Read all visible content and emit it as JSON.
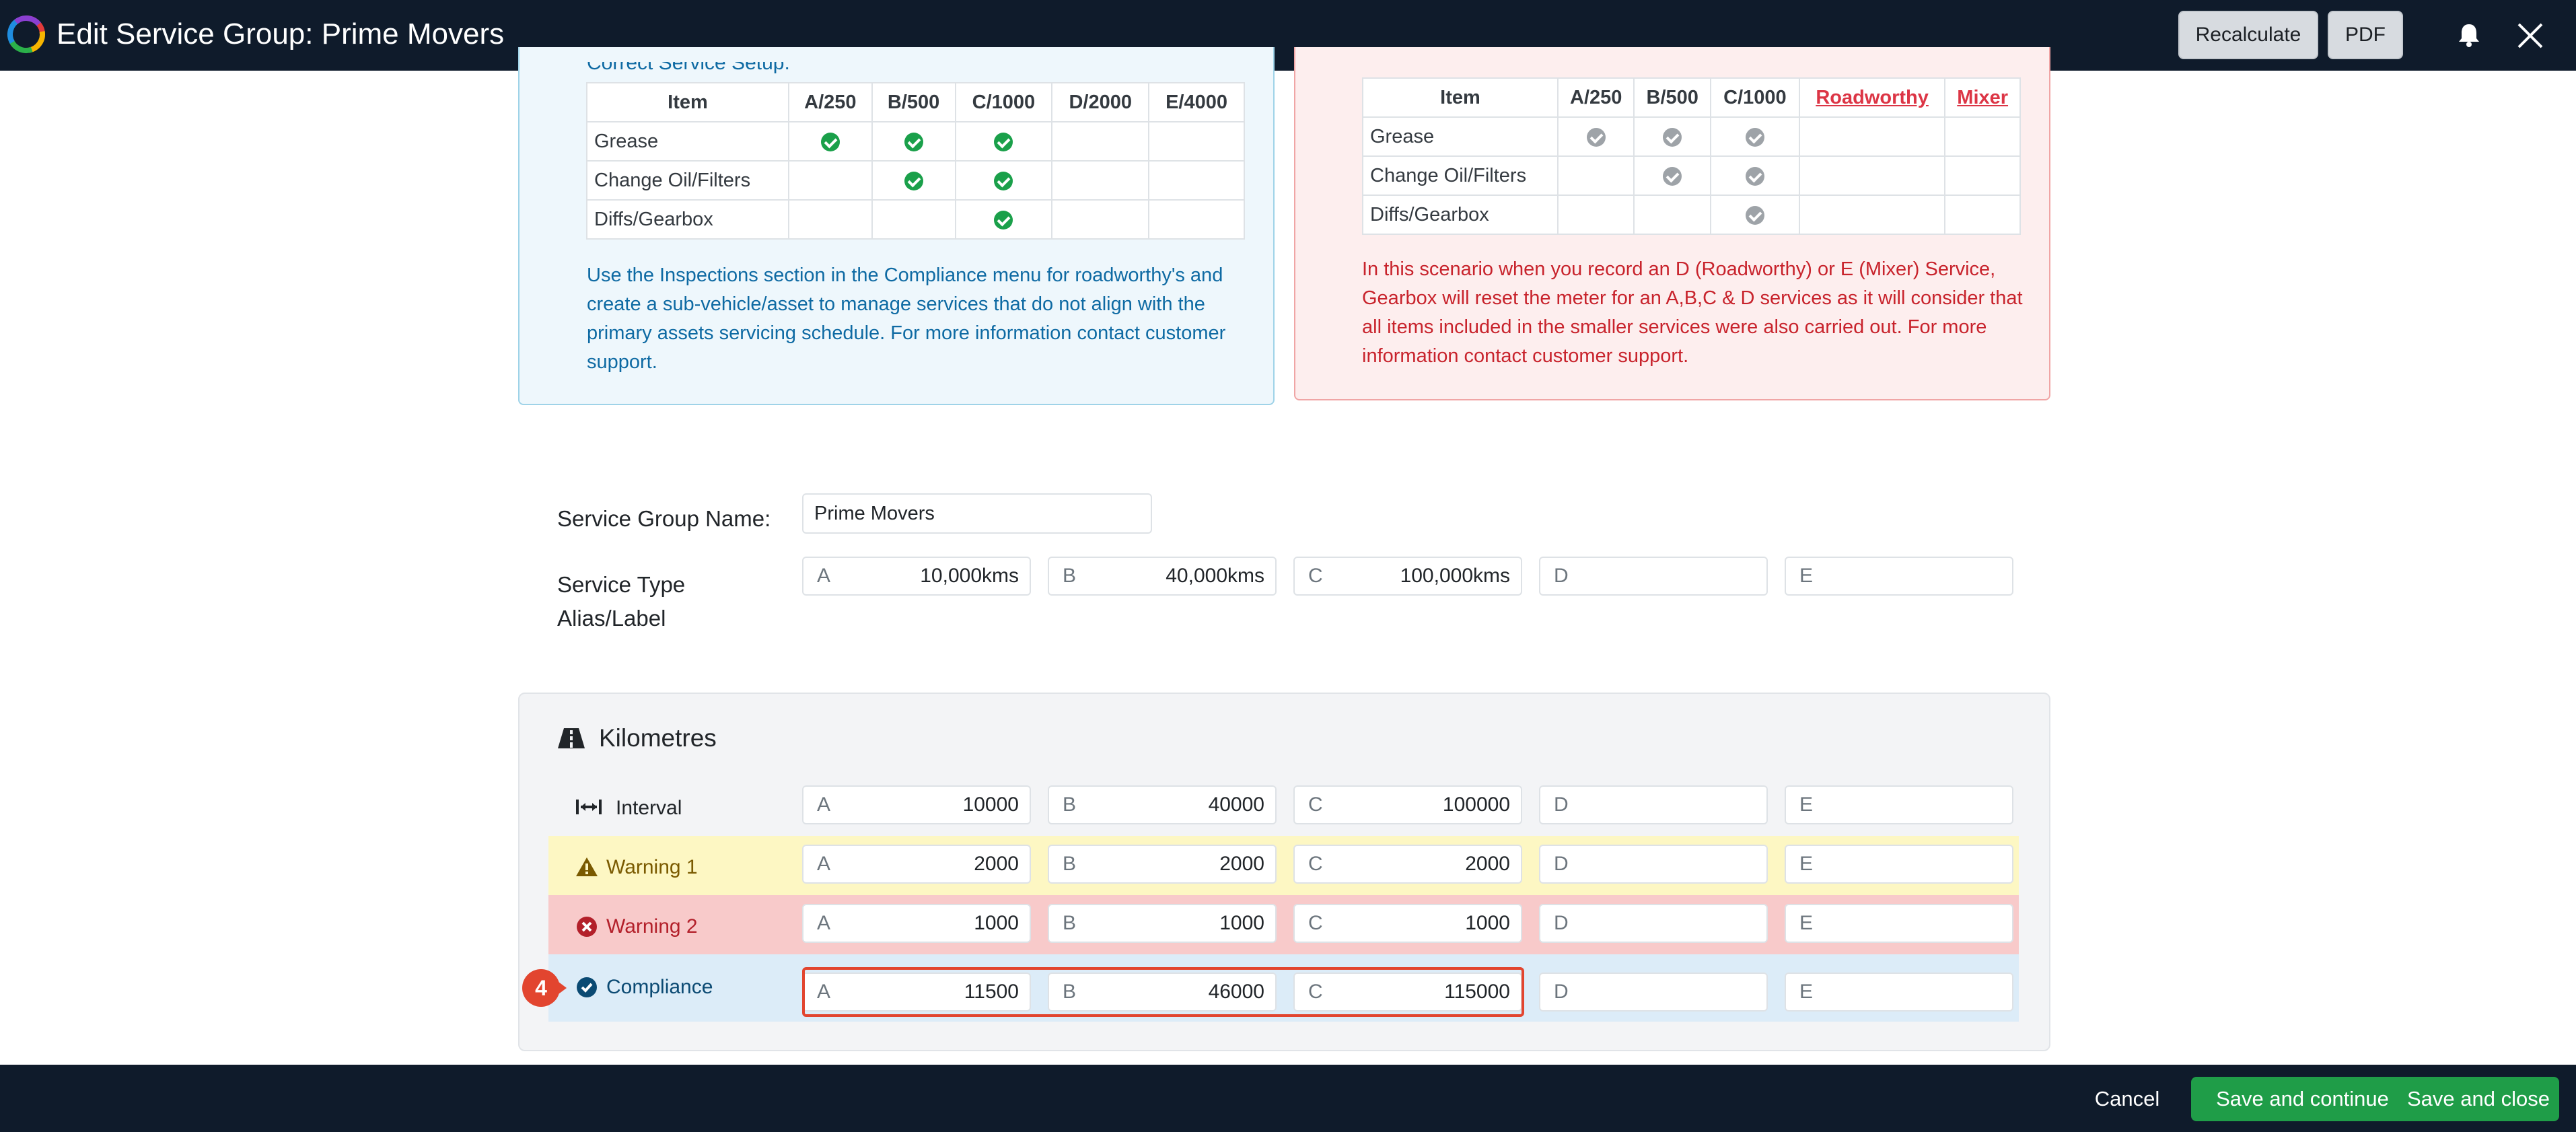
{
  "header": {
    "title_prefix": "Edit Service Group:",
    "title_name": "Prime Movers",
    "recalculate_label": "Recalculate",
    "pdf_label": "PDF"
  },
  "panels": {
    "correct": {
      "heading_peek": "Correct Service Setup:",
      "columns": [
        "Item",
        "A/250",
        "B/500",
        "C/1000",
        "D/2000",
        "E/4000"
      ],
      "rows": [
        {
          "item": "Grease",
          "checks": [
            true,
            true,
            true,
            false,
            false
          ]
        },
        {
          "item": "Change Oil/Filters",
          "checks": [
            false,
            true,
            true,
            false,
            false
          ]
        },
        {
          "item": "Diffs/Gearbox",
          "checks": [
            false,
            false,
            true,
            false,
            false
          ]
        }
      ],
      "note": "Use the Inspections section in the Compliance menu for roadworthy's and create a sub-vehicle/asset to manage services that do not align with the primary assets servicing schedule. For more information contact customer support."
    },
    "incorrect": {
      "columns": [
        "Item",
        "A/250",
        "B/500",
        "C/1000",
        "Roadworthy",
        "Mixer"
      ],
      "rows": [
        {
          "item": "Grease",
          "checks": [
            true,
            true,
            true,
            false,
            false
          ]
        },
        {
          "item": "Change Oil/Filters",
          "checks": [
            false,
            true,
            true,
            false,
            false
          ]
        },
        {
          "item": "Diffs/Gearbox",
          "checks": [
            false,
            false,
            true,
            false,
            false
          ]
        }
      ],
      "note": "In this scenario when you record an D (Roadworthy) or E (Mixer) Service, Gearbox will reset the meter for an A,B,C & D services as it will consider that all items included in the smaller services were also carried out. For more information contact customer support."
    }
  },
  "form": {
    "name_label": "Service Group Name:",
    "name_value": "Prime Movers",
    "type_label": "Service Type Alias/Label",
    "type_fields": [
      {
        "prefix": "A",
        "value": "10,000kms"
      },
      {
        "prefix": "B",
        "value": "40,000kms"
      },
      {
        "prefix": "C",
        "value": "100,000kms"
      },
      {
        "prefix": "D",
        "value": ""
      },
      {
        "prefix": "E",
        "value": ""
      }
    ]
  },
  "kilometres": {
    "title": "Kilometres",
    "rows": [
      {
        "label": "Interval",
        "values": [
          "10000",
          "40000",
          "100000",
          "",
          ""
        ]
      },
      {
        "label": "Warning 1",
        "values": [
          "2000",
          "2000",
          "2000",
          "",
          ""
        ]
      },
      {
        "label": "Warning 2",
        "values": [
          "1000",
          "1000",
          "1000",
          "",
          ""
        ]
      },
      {
        "label": "Compliance",
        "values": [
          "11500",
          "46000",
          "115000",
          "",
          ""
        ]
      }
    ],
    "prefixes": [
      "A",
      "B",
      "C",
      "D",
      "E"
    ],
    "step_badge": "4"
  },
  "footer": {
    "cancel_label": "Cancel",
    "save_continue_label": "Save and continue",
    "save_close_label": "Save and close"
  },
  "colors": {
    "header_bg": "#0f1b2b",
    "success": "#1f9d48",
    "highlight": "#e2452f"
  }
}
